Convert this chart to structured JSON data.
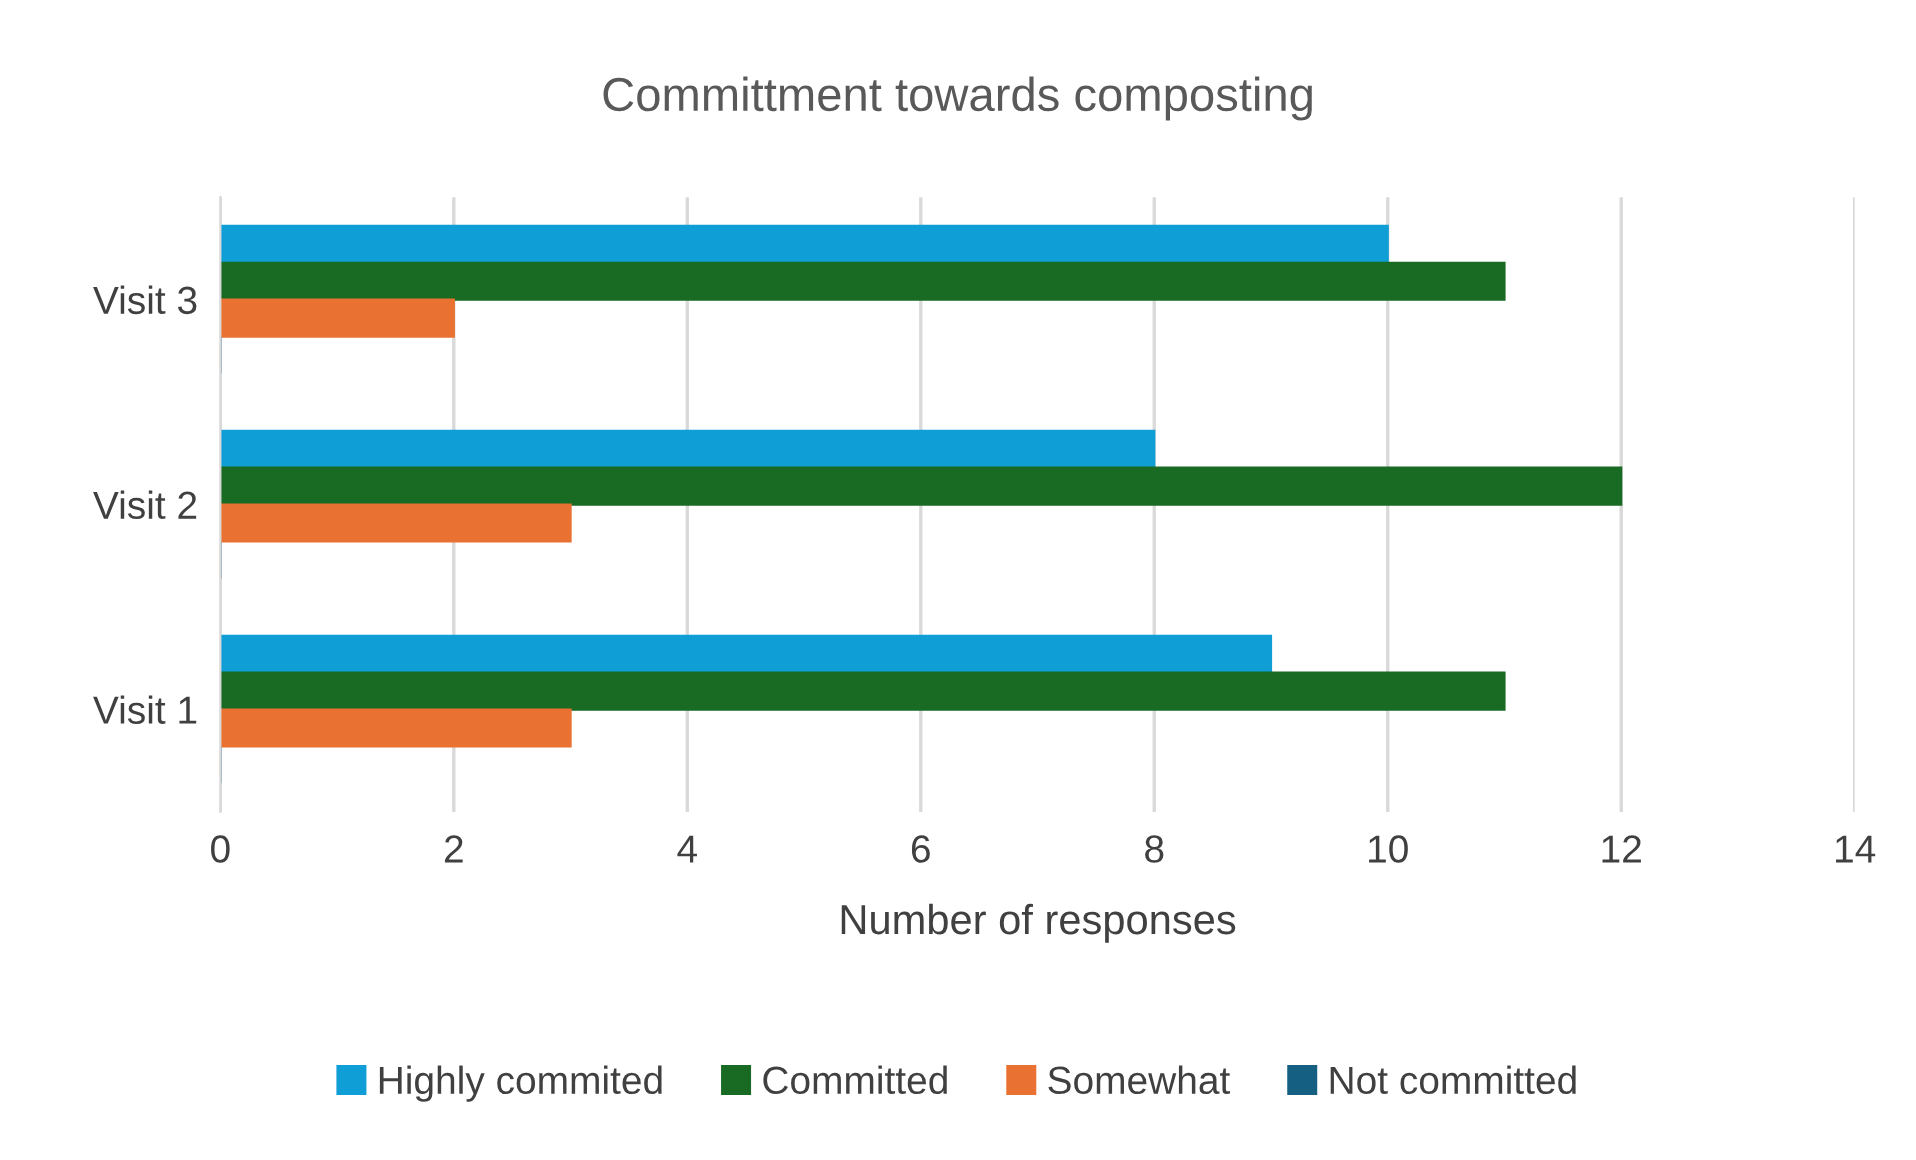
{
  "chart_data": {
    "type": "bar",
    "orientation": "horizontal",
    "title": "Committment towards composting",
    "xlabel": "Number of responses",
    "categories": [
      "Visit 3",
      "Visit 2",
      "Visit 1"
    ],
    "series": [
      {
        "name": "Highly commited",
        "color": "#0f9ed5",
        "values": [
          10,
          8,
          9
        ]
      },
      {
        "name": "Committed",
        "color": "#196b24",
        "values": [
          11,
          12,
          11
        ]
      },
      {
        "name": "Somewhat",
        "color": "#e97132",
        "values": [
          2,
          3,
          3
        ]
      },
      {
        "name": "Not committed",
        "color": "#156082",
        "values": [
          0,
          0,
          0
        ]
      }
    ],
    "xlim": [
      0,
      14
    ],
    "xticks": [
      0,
      2,
      4,
      6,
      8,
      10,
      12,
      14
    ],
    "grid": "x",
    "legend": "bottom"
  }
}
